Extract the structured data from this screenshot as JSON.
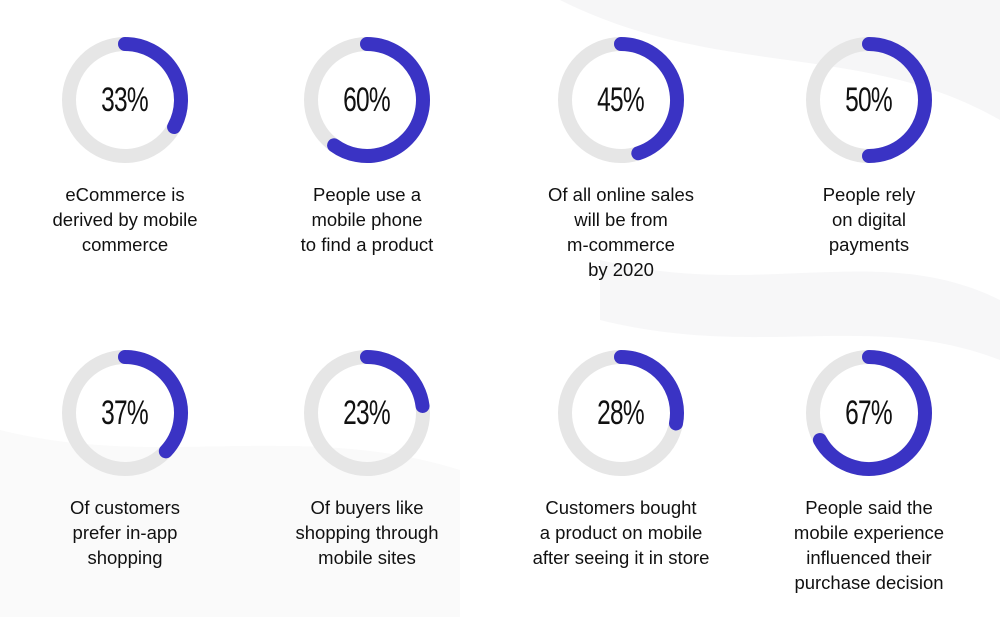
{
  "colors": {
    "accent": "#3a33c4",
    "track": "#e6e6e6",
    "text": "#111111"
  },
  "chart_data": [
    {
      "type": "pie",
      "value": 33,
      "label": "33%",
      "description": "eCommerce is\nderived by mobile\ncommerce"
    },
    {
      "type": "pie",
      "value": 60,
      "label": "60%",
      "description": "People use a\nmobile phone\nto find a product"
    },
    {
      "type": "pie",
      "value": 45,
      "label": "45%",
      "description": "Of all online sales\nwill be from\nm-commerce\nby 2020"
    },
    {
      "type": "pie",
      "value": 50,
      "label": "50%",
      "description": "People rely\non digital\npayments"
    },
    {
      "type": "pie",
      "value": 37,
      "label": "37%",
      "description": "Of customers\nprefer in-app\nshopping"
    },
    {
      "type": "pie",
      "value": 23,
      "label": "23%",
      "description": "Of buyers like\nshopping through\nmobile sites"
    },
    {
      "type": "pie",
      "value": 28,
      "label": "28%",
      "description": "Customers bought\na product on mobile\nafter seeing it in store"
    },
    {
      "type": "pie",
      "value": 67,
      "label": "67%",
      "description": "People said the\nmobile experience\ninfluenced their\npurchase decision"
    }
  ]
}
